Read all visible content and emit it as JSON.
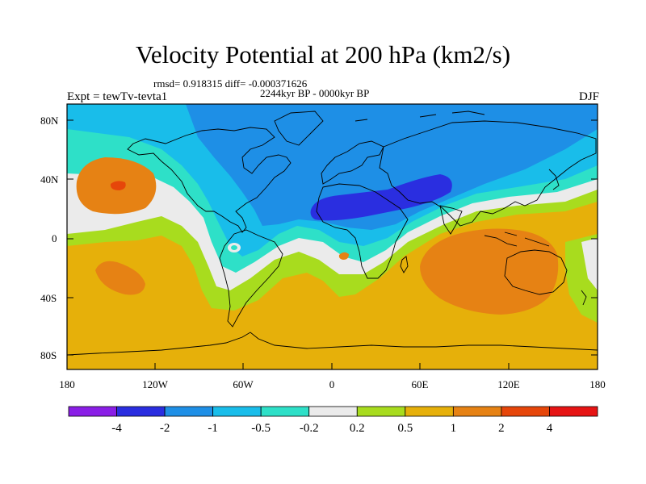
{
  "title": "Velocity Potential at 200 hPa (km2/s)",
  "stats_line": "rmsd= 0.918315 diff= -0.000371626",
  "period_line": "2244kyr BP - 0000kyr BP",
  "experiment": "Expt = tewTv-tevta1",
  "season": "DJF",
  "lat_labels": [
    "80N",
    "40N",
    "0",
    "40S",
    "80S"
  ],
  "lon_labels": [
    "180",
    "120W",
    "60W",
    "0",
    "60E",
    "120E",
    "180"
  ],
  "colorbar": {
    "levels": [
      "-4",
      "-2",
      "-1",
      "-0.5",
      "-0.2",
      "0.2",
      "0.5",
      "1",
      "2",
      "4"
    ],
    "colors": [
      "#8a1ee6",
      "#2a2ee0",
      "#1e8fe6",
      "#19bdea",
      "#2ee0c8",
      "#ebebeb",
      "#a8dc1e",
      "#e6b00a",
      "#e68214",
      "#e6460a",
      "#e61414"
    ]
  }
}
